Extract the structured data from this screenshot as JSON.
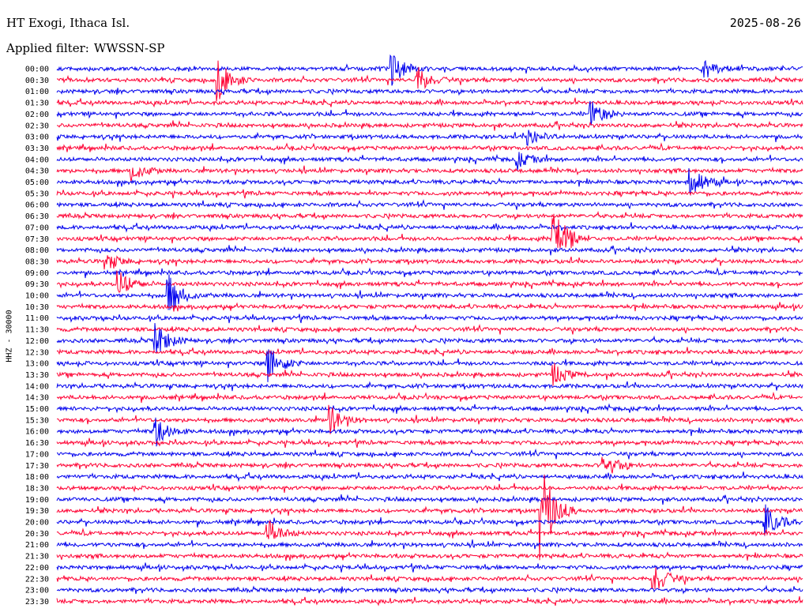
{
  "header": {
    "station": "HT Exogi, Ithaca Isl.",
    "filter_label": "Applied filter:",
    "filter_value": "WWSSN-SP",
    "date": "2025-08-26",
    "channel_label": "HHZ - 30000"
  },
  "colors": {
    "even_trace": "#0000ee",
    "odd_trace": "#ff0033",
    "background": "#ffffff",
    "text": "#000000"
  },
  "chart_data": {
    "type": "line",
    "title": "HT Exogi, Ithaca Isl.",
    "subtitle": "Applied filter: WWSSN-SP",
    "ylabel": "HHZ - 30000",
    "xlabel": "",
    "grid": false,
    "rows": [
      "00:00",
      "00:30",
      "01:00",
      "01:30",
      "02:00",
      "02:30",
      "03:00",
      "03:30",
      "04:00",
      "04:30",
      "05:00",
      "05:30",
      "06:00",
      "06:30",
      "07:00",
      "07:30",
      "08:00",
      "08:30",
      "09:00",
      "09:30",
      "10:00",
      "10:30",
      "11:00",
      "11:30",
      "12:00",
      "12:30",
      "13:00",
      "13:30",
      "14:00",
      "14:30",
      "15:00",
      "15:30",
      "16:00",
      "16:30",
      "17:00",
      "17:30",
      "18:00",
      "18:30",
      "19:00",
      "19:30",
      "20:00",
      "20:30",
      "21:00",
      "21:30",
      "22:00",
      "22:30",
      "23:00",
      "23:30"
    ],
    "row_minutes": 30,
    "events": [
      {
        "row": "00:00",
        "minute": 13.5,
        "amplitude": 2.2
      },
      {
        "row": "00:00",
        "minute": 26.0,
        "amplitude": 1.5
      },
      {
        "row": "00:30",
        "minute": 6.5,
        "amplitude": 3.0
      },
      {
        "row": "00:30",
        "minute": 14.5,
        "amplitude": 2.0
      },
      {
        "row": "02:00",
        "minute": 21.5,
        "amplitude": 1.8
      },
      {
        "row": "03:00",
        "minute": 19.0,
        "amplitude": 1.2
      },
      {
        "row": "04:00",
        "minute": 18.5,
        "amplitude": 1.2
      },
      {
        "row": "05:00",
        "minute": 25.5,
        "amplitude": 2.5
      },
      {
        "row": "04:30",
        "minute": 3.0,
        "amplitude": 1.5
      },
      {
        "row": "07:30",
        "minute": 20.0,
        "amplitude": 5.0
      },
      {
        "row": "08:30",
        "minute": 2.0,
        "amplitude": 1.2
      },
      {
        "row": "09:30",
        "minute": 2.5,
        "amplitude": 2.0
      },
      {
        "row": "10:00",
        "minute": 4.5,
        "amplitude": 3.0
      },
      {
        "row": "12:00",
        "minute": 4.0,
        "amplitude": 2.5
      },
      {
        "row": "13:00",
        "minute": 8.5,
        "amplitude": 3.0
      },
      {
        "row": "13:30",
        "minute": 20.0,
        "amplitude": 1.5
      },
      {
        "row": "15:30",
        "minute": 11.0,
        "amplitude": 2.0
      },
      {
        "row": "16:00",
        "minute": 4.0,
        "amplitude": 2.0
      },
      {
        "row": "17:30",
        "minute": 22.0,
        "amplitude": 2.0
      },
      {
        "row": "19:30",
        "minute": 19.5,
        "amplitude": 7.0
      },
      {
        "row": "20:00",
        "minute": 28.5,
        "amplitude": 2.5
      },
      {
        "row": "20:30",
        "minute": 8.5,
        "amplitude": 2.0
      },
      {
        "row": "22:30",
        "minute": 24.0,
        "amplitude": 2.5
      }
    ]
  }
}
